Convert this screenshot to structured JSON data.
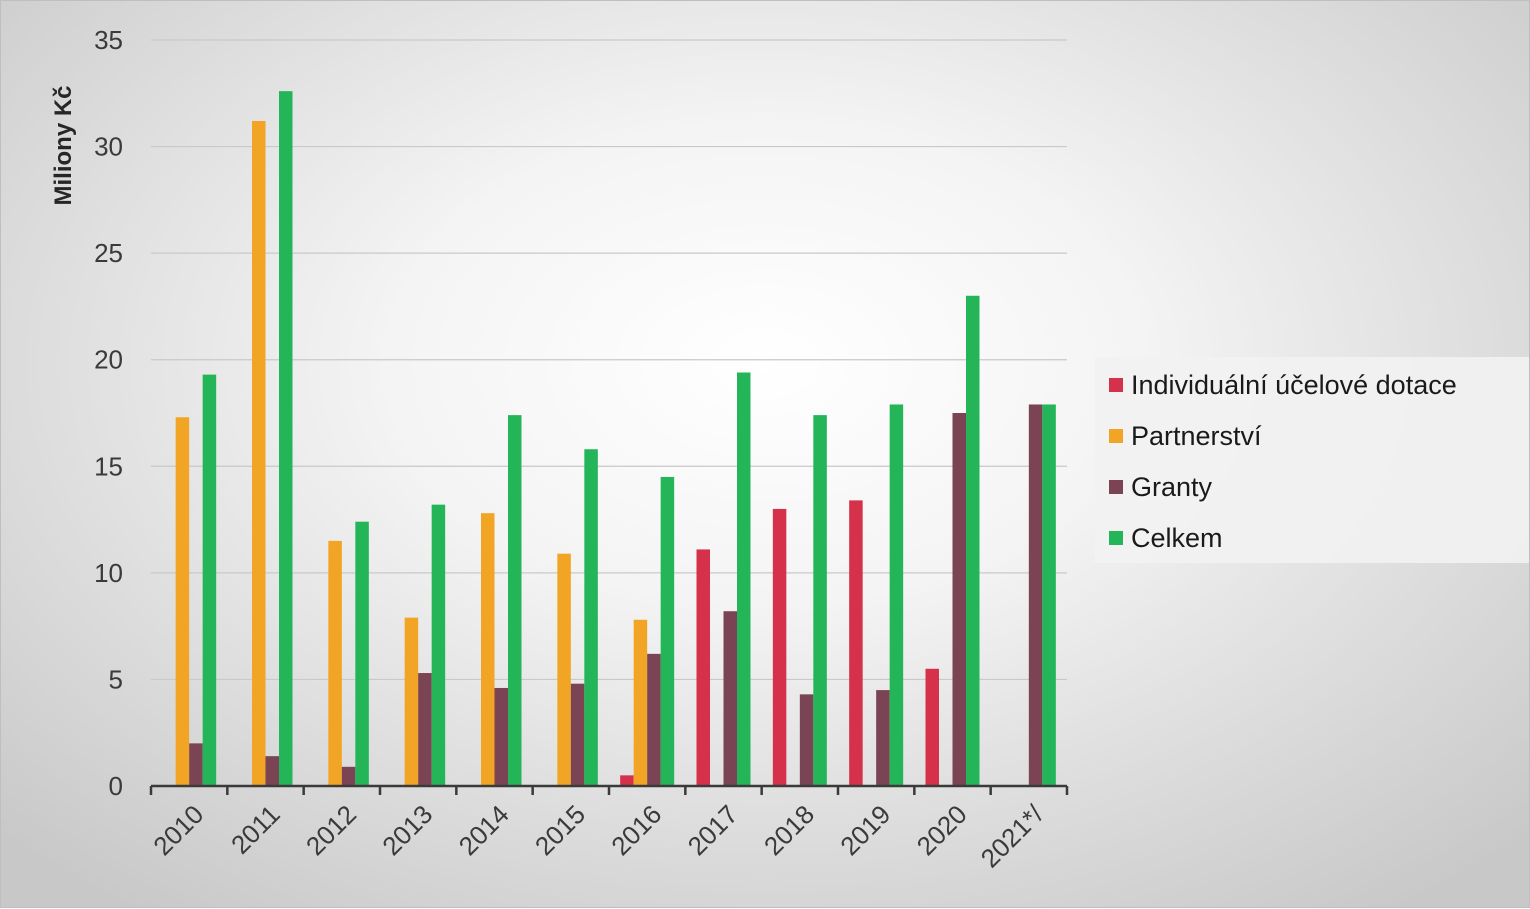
{
  "chart_data": {
    "type": "bar",
    "ylabel": "Milion y Kč",
    "ylim": [
      0,
      35
    ],
    "yticks": [
      0,
      5,
      10,
      15,
      20,
      25,
      30,
      35
    ],
    "grid": true,
    "legend_position": "right",
    "categories": [
      "2010",
      "2011",
      "2012",
      "2013",
      "2014",
      "2015",
      "2016",
      "2017",
      "2018",
      "2019",
      "2020",
      "2021*/"
    ],
    "series": [
      {
        "name": "Individuální účelové dotace",
        "color": "#d6314a",
        "values": [
          null,
          null,
          null,
          null,
          null,
          null,
          0.5,
          11.1,
          13.0,
          13.4,
          5.5,
          null
        ]
      },
      {
        "name": "Partnerství",
        "color": "#f2a424",
        "values": [
          17.3,
          31.2,
          11.5,
          7.9,
          12.8,
          10.9,
          7.8,
          null,
          null,
          null,
          null,
          null
        ]
      },
      {
        "name": "Granty",
        "color": "#7b4454",
        "values": [
          2.0,
          1.4,
          0.9,
          5.3,
          4.6,
          4.8,
          6.2,
          8.2,
          4.3,
          4.5,
          17.5,
          17.9
        ]
      },
      {
        "name": "Celkem",
        "color": "#23b558",
        "values": [
          19.3,
          32.6,
          12.4,
          13.2,
          17.4,
          15.8,
          14.5,
          19.4,
          17.4,
          17.9,
          23.0,
          17.9
        ]
      }
    ]
  }
}
